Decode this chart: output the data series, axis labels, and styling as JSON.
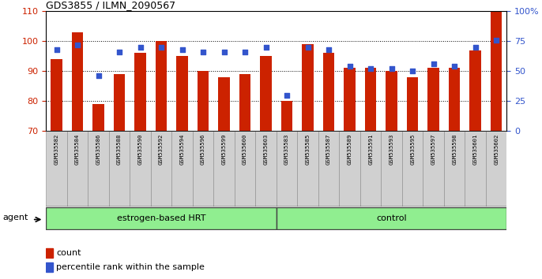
{
  "title": "GDS3855 / ILMN_2090567",
  "samples": [
    "GSM535582",
    "GSM535584",
    "GSM535586",
    "GSM535588",
    "GSM535590",
    "GSM535592",
    "GSM535594",
    "GSM535596",
    "GSM535599",
    "GSM535600",
    "GSM535603",
    "GSM535583",
    "GSM535585",
    "GSM535587",
    "GSM535589",
    "GSM535591",
    "GSM535593",
    "GSM535595",
    "GSM535597",
    "GSM535598",
    "GSM535601",
    "GSM535602"
  ],
  "bar_values": [
    94,
    103,
    79,
    89,
    96,
    100,
    95,
    90,
    88,
    89,
    95,
    80,
    99,
    96,
    91,
    91,
    90,
    88,
    91,
    91,
    97,
    110
  ],
  "percentile_values": [
    68,
    72,
    46,
    66,
    70,
    70,
    68,
    66,
    66,
    66,
    70,
    30,
    70,
    68,
    54,
    52,
    52,
    50,
    56,
    54,
    70,
    76
  ],
  "group1_label": "estrogen-based HRT",
  "group1_count": 11,
  "group2_label": "control",
  "group2_count": 11,
  "agent_label": "agent",
  "ylim_left": [
    70,
    110
  ],
  "ylim_right": [
    0,
    100
  ],
  "yticks_left": [
    70,
    80,
    90,
    100,
    110
  ],
  "yticks_right": [
    0,
    25,
    50,
    75,
    100
  ],
  "ytick_labels_right": [
    "0",
    "25",
    "50",
    "75",
    "100%"
  ],
  "bar_color": "#cc2200",
  "percentile_color": "#3355cc",
  "background_color": "#ffffff",
  "group_bg": "#90ee90",
  "tick_label_bg": "#d0d0d0",
  "legend_count_label": "count",
  "legend_percentile_label": "percentile rank within the sample"
}
